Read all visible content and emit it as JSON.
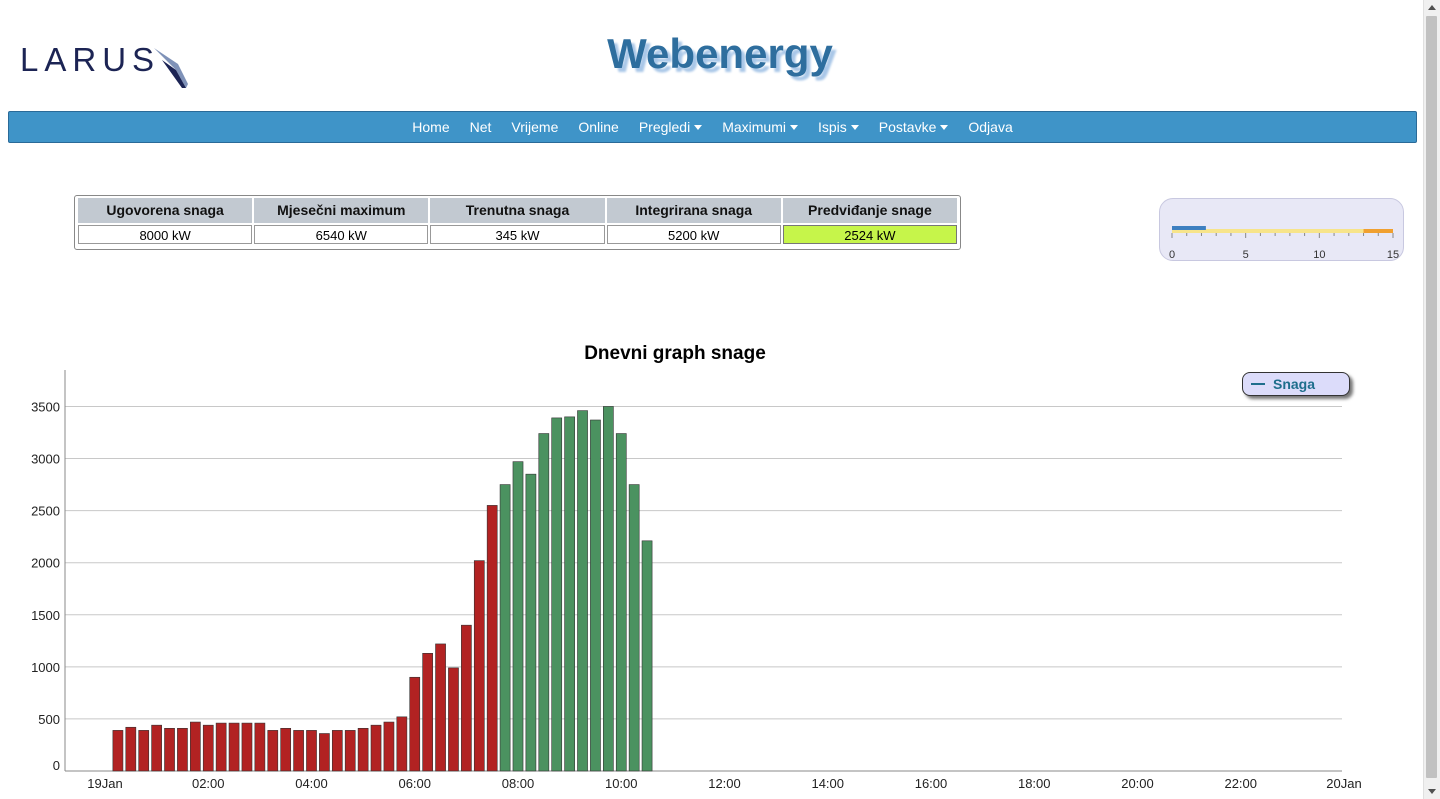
{
  "header": {
    "logo_text": "LARUS",
    "app_title": "Webenergy"
  },
  "nav": {
    "items": [
      {
        "label": "Home",
        "dropdown": false
      },
      {
        "label": "Net",
        "dropdown": false
      },
      {
        "label": "Vrijeme",
        "dropdown": false
      },
      {
        "label": "Online",
        "dropdown": false
      },
      {
        "label": "Pregledi",
        "dropdown": true
      },
      {
        "label": "Maximumi",
        "dropdown": true
      },
      {
        "label": "Ispis",
        "dropdown": true
      },
      {
        "label": "Postavke",
        "dropdown": true
      },
      {
        "label": "Odjava",
        "dropdown": false
      }
    ]
  },
  "stats": {
    "headers": [
      "Ugovorena snaga",
      "Mjesečni maximum",
      "Trenutna snaga",
      "Integrirana snaga",
      "Predviđanje snage"
    ],
    "values": [
      "8000 kW",
      "6540 kW",
      "345 kW",
      "5200 kW",
      "2524 kW"
    ],
    "highlight_color": "#c6f54a"
  },
  "gauge": {
    "ticks": [
      "0",
      "5",
      "10",
      "15"
    ],
    "min": 0,
    "max": 15,
    "value": 2.3,
    "band_warn_start": 13,
    "bar_color": "#3d7fc0",
    "band_color": "#f7e48a",
    "warn_color": "#f0a030"
  },
  "chart_data": {
    "type": "bar",
    "title": "Dnevni graph snage",
    "xlabel": "",
    "ylabel": "",
    "x_tick_labels": [
      "19Jan",
      "02:00",
      "04:00",
      "06:00",
      "08:00",
      "10:00",
      "12:00",
      "14:00",
      "16:00",
      "18:00",
      "20:00",
      "22:00",
      "20Jan"
    ],
    "y_tick_labels": [
      "0",
      "500",
      "1000",
      "1500",
      "2000",
      "2500",
      "3000",
      "3500"
    ],
    "ylim": [
      0,
      3850
    ],
    "x_range_hours": [
      0,
      24
    ],
    "bar_interval_minutes": 15,
    "first_bar_hour": 0.25,
    "grid": true,
    "legend_position": "top-right",
    "series": [
      {
        "name": "Snaga",
        "color_low_tariff": "#b22222",
        "color_high_tariff": "#4b9260",
        "high_tariff_start_hour": 7.75,
        "values": [
          390,
          420,
          390,
          440,
          410,
          410,
          470,
          440,
          460,
          460,
          460,
          460,
          390,
          410,
          390,
          390,
          360,
          390,
          390,
          410,
          440,
          470,
          520,
          900,
          1130,
          1220,
          990,
          1400,
          2020,
          2550,
          2750,
          2970,
          2850,
          3240,
          3390,
          3400,
          3460,
          3370,
          3500,
          3240,
          2750,
          2210
        ]
      }
    ]
  }
}
